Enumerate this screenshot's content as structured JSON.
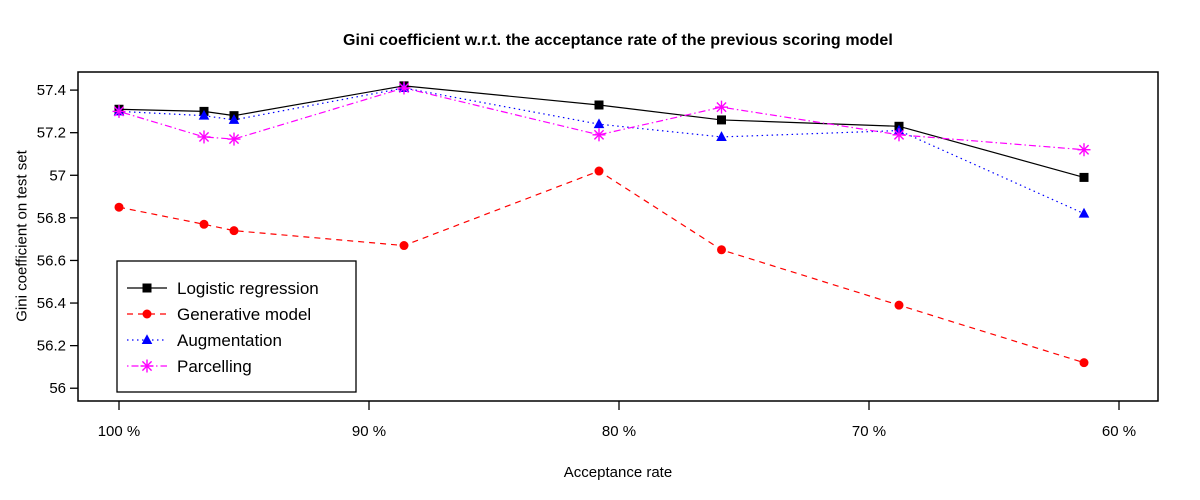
{
  "chart_data": {
    "type": "line",
    "title": "Gini coefficient w.r.t. the acceptance rate of the previous scoring model",
    "xlabel": "Acceptance rate",
    "ylabel": "Gini coefficient on test set",
    "x_reversed": true,
    "xlim": [
      101.64,
      58.44
    ],
    "ylim": [
      55.94,
      57.485
    ],
    "grid": false,
    "x_tick_values": [
      100,
      90,
      80,
      70,
      60
    ],
    "x_tick_labels": [
      "100 %",
      "90 %",
      "80 %",
      "70 %",
      "60 %"
    ],
    "y_tick_values": [
      56,
      56.2,
      56.4,
      56.6,
      56.8,
      57,
      57.2,
      57.4
    ],
    "y_tick_labels": [
      "56",
      "56.2",
      "56.4",
      "56.6",
      "56.8",
      "57",
      "57.2",
      "57.4"
    ],
    "x": [
      100,
      96.6,
      95.4,
      88.6,
      80.8,
      75.9,
      68.8,
      61.4
    ],
    "series": [
      {
        "name": "Logistic regression",
        "color": "#000000",
        "marker": "square",
        "linestyle": "solid",
        "values": [
          57.31,
          57.3,
          57.28,
          57.42,
          57.33,
          57.26,
          57.23,
          56.99
        ]
      },
      {
        "name": "Generative model",
        "color": "#ff0000",
        "marker": "circle",
        "linestyle": "dashed",
        "values": [
          56.85,
          56.77,
          56.74,
          56.67,
          57.02,
          56.65,
          56.39,
          56.12
        ]
      },
      {
        "name": "Augmentation",
        "color": "#0000ff",
        "marker": "triangle",
        "linestyle": "dotted",
        "values": [
          57.3,
          57.28,
          57.26,
          57.41,
          57.24,
          57.18,
          57.21,
          56.82
        ]
      },
      {
        "name": "Parcelling",
        "color": "#ff00ff",
        "marker": "asterisk",
        "linestyle": "dashdot",
        "values": [
          57.3,
          57.18,
          57.17,
          57.41,
          57.19,
          57.32,
          57.19,
          57.12
        ]
      }
    ],
    "legend_position": "bottom-left"
  }
}
